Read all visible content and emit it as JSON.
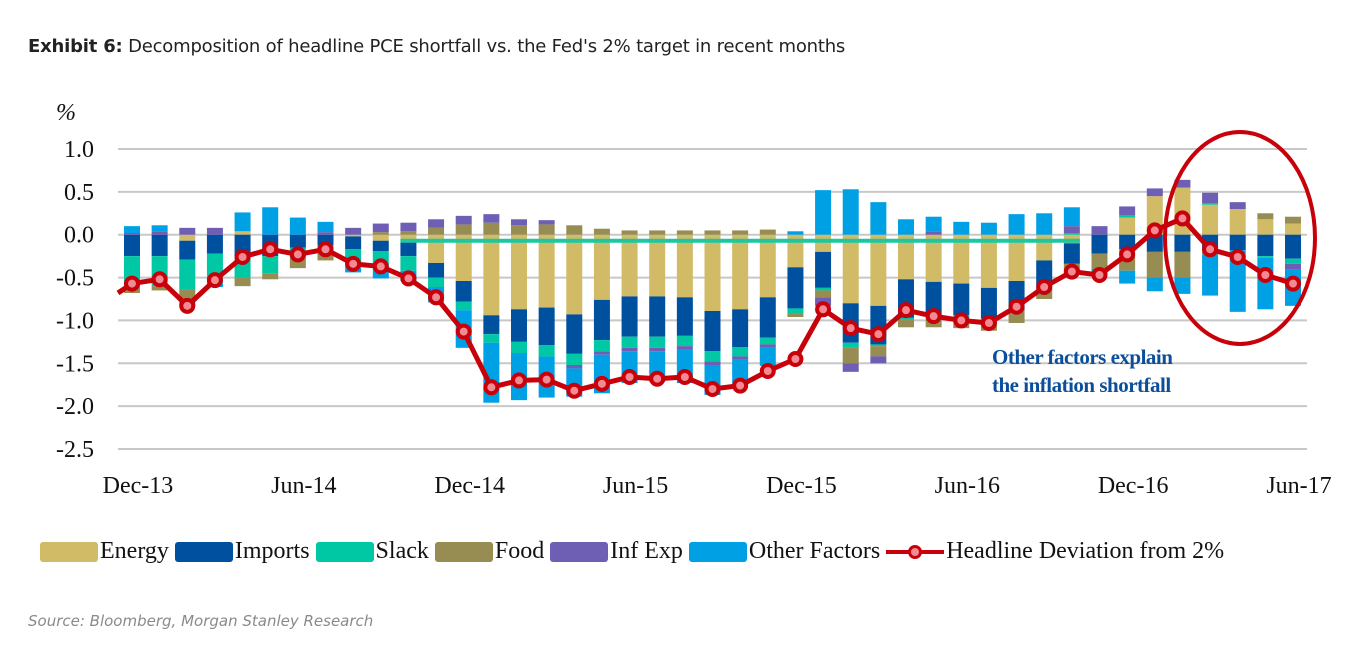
{
  "title": {
    "prefix": "Exhibit 6:",
    "text": " Decomposition of headline PCE shortfall vs. the Fed's 2% target in recent months"
  },
  "source": "Source: Bloomberg, Morgan Stanley Research",
  "annotation": {
    "line1": "Other factors explain",
    "line2": "the inflation shortfall",
    "color": "#0b4f9c"
  },
  "chart_data": {
    "type": "bar",
    "stacked": true,
    "title": "Decomposition of headline PCE shortfall vs. the Fed's 2% target in recent months",
    "ylabel": "%",
    "xlabel": "",
    "ylim": [
      -2.5,
      1.0
    ],
    "yticks": [
      1.0,
      0.5,
      0.0,
      -0.5,
      -1.0,
      -1.5,
      -2.0,
      -2.5
    ],
    "ytick_labels": [
      "1.0",
      "0.5",
      "0.0",
      "-0.5",
      "-1.0",
      "-1.5",
      "-2.0",
      "-2.5"
    ],
    "grid": true,
    "legend_position": "bottom",
    "x_tick_labels": [
      {
        "index": 0,
        "label": "Dec-13"
      },
      {
        "index": 6,
        "label": "Jun-14"
      },
      {
        "index": 12,
        "label": "Dec-14"
      },
      {
        "index": 18,
        "label": "Jun-15"
      },
      {
        "index": 24,
        "label": "Dec-15"
      },
      {
        "index": 30,
        "label": "Jun-16"
      },
      {
        "index": 36,
        "label": "Dec-16"
      },
      {
        "index": 42,
        "label": "Jun-17"
      }
    ],
    "categories": [
      "Dec-13",
      "Jan-14",
      "Feb-14",
      "Mar-14",
      "Apr-14",
      "May-14",
      "Jun-14",
      "Jul-14",
      "Aug-14",
      "Sep-14",
      "Oct-14",
      "Nov-14",
      "Dec-14",
      "Jan-15",
      "Feb-15",
      "Mar-15",
      "Apr-15",
      "May-15",
      "Jun-15",
      "Jul-15",
      "Aug-15",
      "Sep-15",
      "Oct-15",
      "Nov-15",
      "Dec-15",
      "Jan-16",
      "Feb-16",
      "Mar-16",
      "Apr-16",
      "May-16",
      "Jun-16",
      "Jul-16",
      "Aug-16",
      "Sep-16",
      "Oct-16",
      "Nov-16",
      "Dec-16",
      "Jan-17",
      "Feb-17",
      "Mar-17",
      "Apr-17",
      "May-17",
      "Jun-17"
    ],
    "series": [
      {
        "name": "Energy",
        "color": "#d1bb67",
        "values": [
          0.0,
          0.0,
          -0.07,
          0.0,
          0.04,
          0.0,
          0.0,
          0.0,
          -0.02,
          -0.07,
          -0.09,
          -0.33,
          -0.54,
          -0.94,
          -0.87,
          -0.85,
          -0.93,
          -0.76,
          -0.72,
          -0.72,
          -0.73,
          -0.89,
          -0.87,
          -0.73,
          -0.38,
          -0.2,
          -0.8,
          -0.83,
          -0.52,
          -0.55,
          -0.57,
          -0.62,
          -0.54,
          -0.3,
          -0.1,
          0.0,
          0.2,
          0.45,
          0.55,
          0.35,
          0.3,
          0.18,
          0.13
        ]
      },
      {
        "name": "Imports",
        "color": "#0050a0",
        "values": [
          -0.25,
          -0.25,
          -0.22,
          -0.22,
          -0.25,
          -0.25,
          -0.15,
          -0.12,
          -0.15,
          -0.12,
          -0.16,
          -0.17,
          -0.24,
          -0.22,
          -0.38,
          -0.44,
          -0.46,
          -0.47,
          -0.47,
          -0.47,
          -0.45,
          -0.47,
          -0.44,
          -0.47,
          -0.48,
          -0.42,
          -0.46,
          -0.45,
          -0.45,
          -0.4,
          -0.37,
          -0.36,
          -0.34,
          -0.3,
          -0.24,
          -0.22,
          -0.17,
          -0.2,
          -0.2,
          -0.18,
          -0.18,
          -0.25,
          -0.28
        ]
      },
      {
        "name": "Slack",
        "color": "#00c8a5",
        "values": [
          -0.35,
          -0.35,
          -0.35,
          -0.35,
          -0.25,
          -0.2,
          -0.12,
          -0.1,
          -0.22,
          -0.22,
          -0.17,
          -0.11,
          -0.1,
          -0.1,
          -0.13,
          -0.13,
          -0.13,
          -0.13,
          -0.13,
          -0.13,
          -0.12,
          -0.12,
          -0.11,
          -0.08,
          -0.06,
          -0.03,
          -0.06,
          -0.02,
          -0.02,
          -0.02,
          -0.02,
          0.0,
          0.0,
          0.0,
          0.02,
          0.0,
          0.03,
          0.0,
          0.0,
          0.02,
          0.0,
          -0.02,
          -0.06
        ]
      },
      {
        "name": "Food",
        "color": "#978c51",
        "values": [
          -0.08,
          -0.05,
          -0.12,
          0.0,
          -0.1,
          -0.07,
          -0.12,
          -0.08,
          0.0,
          0.03,
          0.04,
          0.08,
          0.12,
          0.14,
          0.11,
          0.12,
          0.11,
          0.07,
          0.05,
          0.05,
          0.05,
          0.05,
          0.05,
          0.06,
          -0.04,
          -0.08,
          -0.18,
          -0.12,
          -0.09,
          -0.11,
          -0.13,
          -0.14,
          -0.15,
          -0.15,
          -0.12,
          -0.18,
          -0.25,
          -0.3,
          -0.3,
          -0.05,
          0.0,
          0.07,
          0.08
        ]
      },
      {
        "name": "Inf Exp",
        "color": "#6e5fb4",
        "values": [
          0.02,
          0.04,
          0.08,
          0.08,
          0.0,
          0.0,
          0.0,
          0.03,
          0.08,
          0.1,
          0.1,
          0.1,
          0.1,
          0.1,
          0.07,
          0.05,
          -0.04,
          -0.04,
          -0.04,
          -0.04,
          -0.04,
          -0.04,
          -0.04,
          -0.04,
          0.0,
          -0.1,
          -0.1,
          -0.08,
          0.0,
          0.04,
          0.0,
          0.0,
          0.0,
          0.0,
          0.08,
          0.1,
          0.1,
          0.09,
          0.09,
          0.12,
          0.08,
          0.0,
          -0.07
        ]
      },
      {
        "name": "Other Factors",
        "color": "#00a0e4",
        "values": [
          0.08,
          0.07,
          -0.07,
          -0.04,
          0.22,
          0.32,
          0.2,
          0.12,
          -0.05,
          -0.1,
          -0.12,
          -0.18,
          -0.44,
          -0.7,
          -0.55,
          -0.48,
          -0.33,
          -0.45,
          -0.37,
          -0.36,
          -0.39,
          -0.35,
          -0.3,
          -0.21,
          0.04,
          0.52,
          0.53,
          0.38,
          0.18,
          0.17,
          0.15,
          0.14,
          0.24,
          0.25,
          0.22,
          -0.06,
          -0.15,
          -0.16,
          -0.19,
          -0.48,
          -0.72,
          -0.6,
          -0.42
        ]
      }
    ],
    "line_series": {
      "name": "Headline Deviation from 2%",
      "color": "#c8000a",
      "marker_fill": "#f28a93",
      "values": [
        -0.57,
        -0.52,
        -0.83,
        -0.53,
        -0.26,
        -0.17,
        -0.23,
        -0.17,
        -0.34,
        -0.37,
        -0.51,
        -0.73,
        -1.13,
        -1.78,
        -1.7,
        -1.69,
        -1.82,
        -1.74,
        -1.66,
        -1.68,
        -1.66,
        -1.8,
        -1.76,
        -1.59,
        -1.45,
        -0.87,
        -1.09,
        -1.16,
        -0.88,
        -0.95,
        -1.0,
        -1.03,
        -0.84,
        -0.61,
        -0.43,
        -0.47,
        -0.23,
        0.05,
        0.19,
        -0.17,
        -0.26,
        -0.47,
        -0.57
      ],
      "start_value": -0.68
    },
    "reference_line": {
      "value": -0.07,
      "from_index": 10,
      "to_index": 34,
      "color": "#1dc8a0"
    },
    "highlight_ellipse": {
      "from_index": 39,
      "to_index": 42,
      "color": "#c8000a"
    }
  },
  "legend": [
    {
      "label": "Energy",
      "color": "#d1bb67",
      "kind": "box"
    },
    {
      "label": "Imports",
      "color": "#0050a0",
      "kind": "box"
    },
    {
      "label": "Slack",
      "color": "#00c8a5",
      "kind": "box"
    },
    {
      "label": "Food",
      "color": "#978c51",
      "kind": "box"
    },
    {
      "label": "Inf Exp",
      "color": "#6e5fb4",
      "kind": "box"
    },
    {
      "label": "Other Factors",
      "color": "#00a0e4",
      "kind": "box"
    },
    {
      "label": "Headline Deviation from 2%",
      "color": "#c8000a",
      "kind": "line"
    }
  ]
}
